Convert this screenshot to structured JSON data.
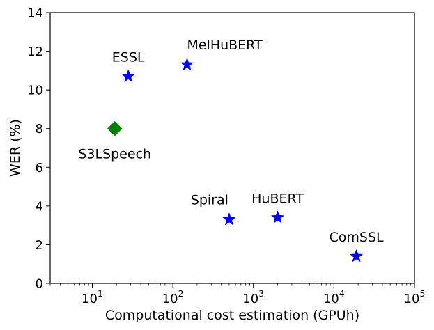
{
  "chart_data": {
    "type": "scatter",
    "title": "",
    "xlabel": "Computational cost estimation (GPUh)",
    "ylabel": "WER (%)",
    "xscale": "log",
    "xlim": [
      3,
      100000
    ],
    "ylim": [
      0,
      14
    ],
    "x_ticks": [
      {
        "value": 10,
        "base": "10",
        "exp": "1"
      },
      {
        "value": 100,
        "base": "10",
        "exp": "2"
      },
      {
        "value": 1000,
        "base": "10",
        "exp": "3"
      },
      {
        "value": 10000,
        "base": "10",
        "exp": "4"
      },
      {
        "value": 100000,
        "base": "10",
        "exp": "5"
      }
    ],
    "y_ticks": [
      "0",
      "2",
      "4",
      "6",
      "8",
      "10",
      "12",
      "14"
    ],
    "grid": false,
    "points": [
      {
        "label": "ESSL",
        "x": 28,
        "y": 10.7,
        "marker": "star",
        "color": "#0000ff",
        "label_pos": "above"
      },
      {
        "label": "MelHuBERT",
        "x": 150,
        "y": 11.3,
        "marker": "star",
        "color": "#0000ff",
        "label_pos": "above-right"
      },
      {
        "label": "S3LSpeech",
        "x": 19,
        "y": 8.0,
        "marker": "diamond",
        "color": "#008000",
        "label_pos": "below"
      },
      {
        "label": "Spiral",
        "x": 500,
        "y": 3.3,
        "marker": "star",
        "color": "#0000ff",
        "label_pos": "above-left"
      },
      {
        "label": "HuBERT",
        "x": 2000,
        "y": 3.4,
        "marker": "star",
        "color": "#0000ff",
        "label_pos": "above"
      },
      {
        "label": "ComSSL",
        "x": 19000,
        "y": 1.4,
        "marker": "star",
        "color": "#0000ff",
        "label_pos": "above"
      }
    ]
  }
}
